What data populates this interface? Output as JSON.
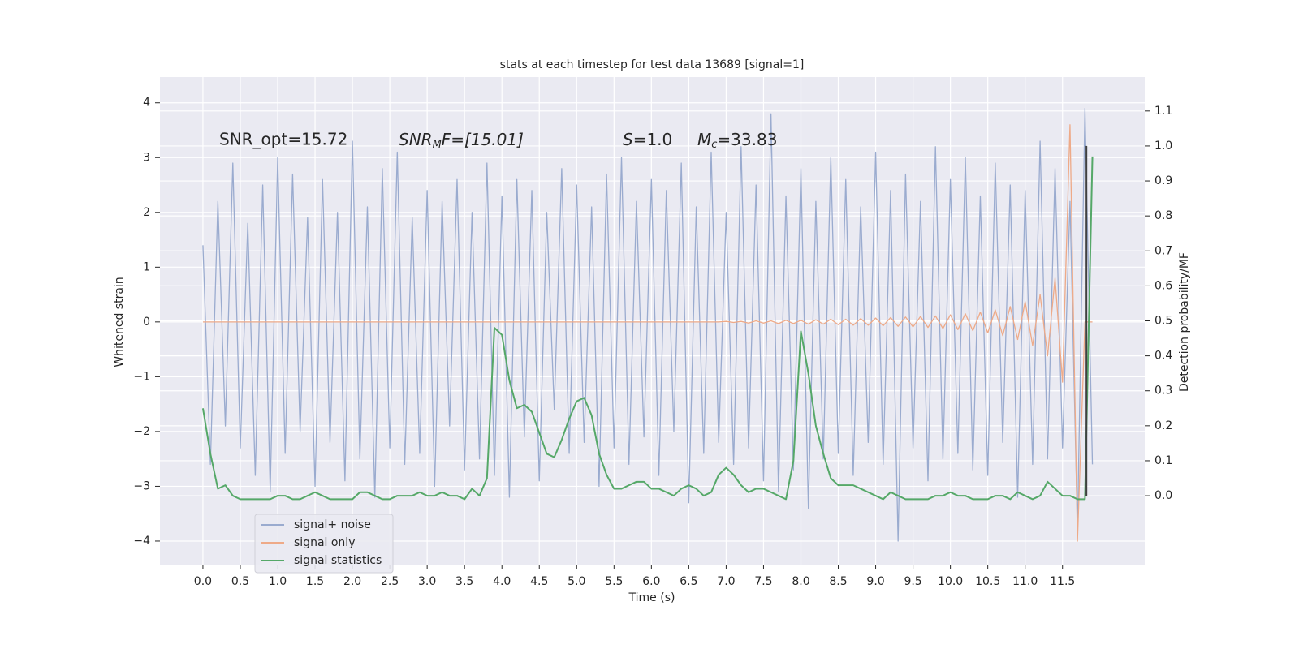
{
  "chart_data": {
    "type": "line",
    "title": "stats at each timestep for test data 13689 [signal=1]",
    "xlabel": "Time (s)",
    "ylabel": "Whitened strain",
    "y2label": "Detection probability/MF",
    "annotations": [
      {
        "text": "SNR_opt=15.72"
      },
      {
        "main": "SNR",
        "sub": "M",
        "rest": "F=[15.01]"
      },
      {
        "main": "S",
        "rest": "=1.0"
      },
      {
        "main": "M",
        "sub": "c",
        "rest": "=33.83"
      }
    ],
    "grid": true,
    "legend": "lower left",
    "vline_x": 11.82,
    "vline_color": "#404040",
    "xlim": [
      -0.575,
      12.6
    ],
    "ylim": [
      -4.43,
      4.47
    ],
    "y2lim": [
      -0.197,
      1.197
    ],
    "xticks": [
      {
        "value": 0,
        "label": "0.0"
      },
      0.5,
      {
        "value": 1,
        "label": "1.0"
      },
      1.5,
      {
        "value": 2,
        "label": "2.0"
      },
      2.5,
      {
        "value": 3,
        "label": "3.0"
      },
      3.5,
      {
        "value": 4,
        "label": "4.0"
      },
      4.5,
      {
        "value": 5,
        "label": "5.0"
      },
      5.5,
      {
        "value": 6,
        "label": "6.0"
      },
      6.5,
      {
        "value": 7,
        "label": "7.0"
      },
      7.5,
      {
        "value": 8,
        "label": "8.0"
      },
      8.5,
      {
        "value": 9,
        "label": "9.0"
      },
      9.5,
      {
        "value": 10,
        "label": "10.0"
      },
      10.5,
      {
        "value": 11,
        "label": "11.0"
      },
      11.5
    ],
    "yticks": [
      {
        "value": -4,
        "label": "−4"
      },
      {
        "value": -3,
        "label": "−3"
      },
      {
        "value": -2,
        "label": "−2"
      },
      {
        "value": -1,
        "label": "−1"
      },
      0,
      1,
      2,
      3,
      4
    ],
    "y2ticks": [
      {
        "value": 0,
        "label": "0.0"
      },
      0.1,
      0.2,
      0.3,
      0.4,
      0.5,
      0.6,
      0.7,
      0.8,
      0.9,
      {
        "value": 1,
        "label": "1.0"
      },
      1.1
    ],
    "x": [
      0.0,
      0.1,
      0.2,
      0.3,
      0.4,
      0.5,
      0.6,
      0.7,
      0.8,
      0.9,
      1.0,
      1.1,
      1.2,
      1.3,
      1.4,
      1.5,
      1.6,
      1.7,
      1.8,
      1.9,
      2.0,
      2.1,
      2.2,
      2.3,
      2.4,
      2.5,
      2.6,
      2.7,
      2.8,
      2.9,
      3.0,
      3.1,
      3.2,
      3.3,
      3.4,
      3.5,
      3.6,
      3.7,
      3.8,
      3.9,
      4.0,
      4.1,
      4.2,
      4.3,
      4.4,
      4.5,
      4.6,
      4.7,
      4.8,
      4.9,
      5.0,
      5.1,
      5.2,
      5.3,
      5.4,
      5.5,
      5.6,
      5.7,
      5.8,
      5.9,
      6.0,
      6.1,
      6.2,
      6.3,
      6.4,
      6.5,
      6.6,
      6.7,
      6.8,
      6.9,
      7.0,
      7.1,
      7.2,
      7.3,
      7.4,
      7.5,
      7.6,
      7.7,
      7.8,
      7.9,
      8.0,
      8.1,
      8.2,
      8.3,
      8.4,
      8.5,
      8.6,
      8.7,
      8.8,
      8.9,
      9.0,
      9.1,
      9.2,
      9.3,
      9.4,
      9.5,
      9.6,
      9.7,
      9.8,
      9.9,
      10.0,
      10.1,
      10.2,
      10.3,
      10.4,
      10.5,
      10.6,
      10.7,
      10.8,
      10.9,
      11.0,
      11.1,
      11.2,
      11.3,
      11.4,
      11.5,
      11.6,
      11.7,
      11.8,
      11.9
    ],
    "series": [
      {
        "name": "signal+ noise",
        "color": "#9aabcf",
        "values": [
          1.4,
          -2.6,
          2.2,
          -1.9,
          2.9,
          -2.3,
          1.8,
          -2.8,
          2.5,
          -3.1,
          3.0,
          -2.4,
          2.7,
          -2.0,
          1.9,
          -3.0,
          2.6,
          -2.2,
          2.0,
          -2.9,
          3.3,
          -2.5,
          2.1,
          -3.2,
          2.8,
          -2.3,
          3.1,
          -2.6,
          1.9,
          -2.4,
          2.4,
          -3.0,
          2.2,
          -1.9,
          2.6,
          -2.7,
          2.0,
          -2.5,
          2.9,
          -2.8,
          2.3,
          -3.2,
          2.6,
          -2.1,
          2.4,
          -2.9,
          2.0,
          -1.6,
          2.8,
          -2.4,
          2.5,
          -2.2,
          2.1,
          -3.0,
          2.7,
          -2.3,
          3.0,
          -2.6,
          2.2,
          -2.1,
          2.6,
          -2.8,
          2.4,
          -2.0,
          2.9,
          -3.3,
          2.1,
          -2.4,
          3.1,
          -2.2,
          2.0,
          -2.6,
          3.2,
          -2.3,
          2.5,
          -2.9,
          3.8,
          -3.1,
          2.3,
          -2.7,
          2.8,
          -3.4,
          2.2,
          -2.5,
          3.0,
          -2.4,
          2.6,
          -2.8,
          2.1,
          -2.2,
          3.1,
          -2.6,
          2.4,
          -4.0,
          2.7,
          -2.3,
          2.2,
          -2.9,
          3.2,
          -2.5,
          2.6,
          -2.4,
          3.0,
          -2.7,
          2.3,
          -2.8,
          2.9,
          -2.2,
          2.5,
          -3.2,
          2.4,
          -2.6,
          3.3,
          -2.5,
          2.8,
          -2.3,
          2.2,
          -3.8,
          3.9,
          -2.6
        ]
      },
      {
        "name": "signal only",
        "color": "#eeaa88",
        "values": [
          0,
          0,
          0,
          0,
          0,
          0,
          0,
          0,
          0,
          0,
          0,
          0,
          0,
          0,
          0,
          0,
          0,
          0,
          0,
          0,
          0,
          0,
          0,
          0,
          0,
          0,
          0,
          0,
          0,
          0,
          0,
          0,
          0,
          0,
          0,
          0,
          0,
          0,
          0,
          0,
          0,
          0,
          0,
          0,
          0,
          0,
          0,
          0,
          0,
          0,
          0,
          0,
          0,
          0,
          0,
          0,
          0,
          0,
          0,
          0,
          0,
          0,
          0,
          0,
          0,
          0,
          0,
          0,
          0,
          0,
          0.01,
          -0.01,
          0.01,
          -0.02,
          0.02,
          -0.02,
          0.02,
          -0.03,
          0.03,
          -0.03,
          0.03,
          -0.04,
          0.04,
          -0.04,
          0.05,
          -0.05,
          0.05,
          -0.06,
          0.06,
          -0.06,
          0.07,
          -0.07,
          0.08,
          -0.08,
          0.09,
          -0.09,
          0.1,
          -0.1,
          0.11,
          -0.12,
          0.13,
          -0.14,
          0.15,
          -0.16,
          0.18,
          -0.2,
          0.22,
          -0.25,
          0.28,
          -0.32,
          0.37,
          -0.43,
          0.5,
          -0.62,
          0.8,
          -1.1,
          3.6,
          -4.0,
          0,
          0
        ]
      },
      {
        "name": "signal statistics",
        "color": "#55a868",
        "axis": "y2",
        "values": [
          0.25,
          0.12,
          0.02,
          0.03,
          0.0,
          -0.01,
          -0.01,
          -0.01,
          -0.01,
          -0.01,
          0.0,
          0.0,
          -0.01,
          -0.01,
          0.0,
          0.01,
          0.0,
          -0.01,
          -0.01,
          -0.01,
          -0.01,
          0.01,
          0.01,
          0.0,
          -0.01,
          -0.01,
          0.0,
          0.0,
          0.0,
          0.01,
          0.0,
          0.0,
          0.01,
          0.0,
          0.0,
          -0.01,
          0.02,
          0.0,
          0.05,
          0.48,
          0.46,
          0.33,
          0.25,
          0.26,
          0.24,
          0.18,
          0.12,
          0.11,
          0.16,
          0.22,
          0.27,
          0.28,
          0.23,
          0.12,
          0.06,
          0.02,
          0.02,
          0.03,
          0.04,
          0.04,
          0.02,
          0.02,
          0.01,
          0.0,
          0.02,
          0.03,
          0.02,
          0.0,
          0.01,
          0.06,
          0.08,
          0.06,
          0.03,
          0.01,
          0.02,
          0.02,
          0.01,
          0.0,
          -0.01,
          0.1,
          0.47,
          0.35,
          0.2,
          0.12,
          0.05,
          0.03,
          0.03,
          0.03,
          0.02,
          0.01,
          0.0,
          -0.01,
          0.01,
          0.0,
          -0.01,
          -0.01,
          -0.01,
          -0.01,
          0.0,
          0.0,
          0.01,
          0.0,
          0.0,
          -0.01,
          -0.01,
          -0.01,
          0.0,
          0.0,
          -0.01,
          0.01,
          0.0,
          -0.01,
          0.0,
          0.04,
          0.02,
          0.0,
          0.0,
          -0.01,
          -0.01,
          0.97
        ]
      }
    ]
  }
}
